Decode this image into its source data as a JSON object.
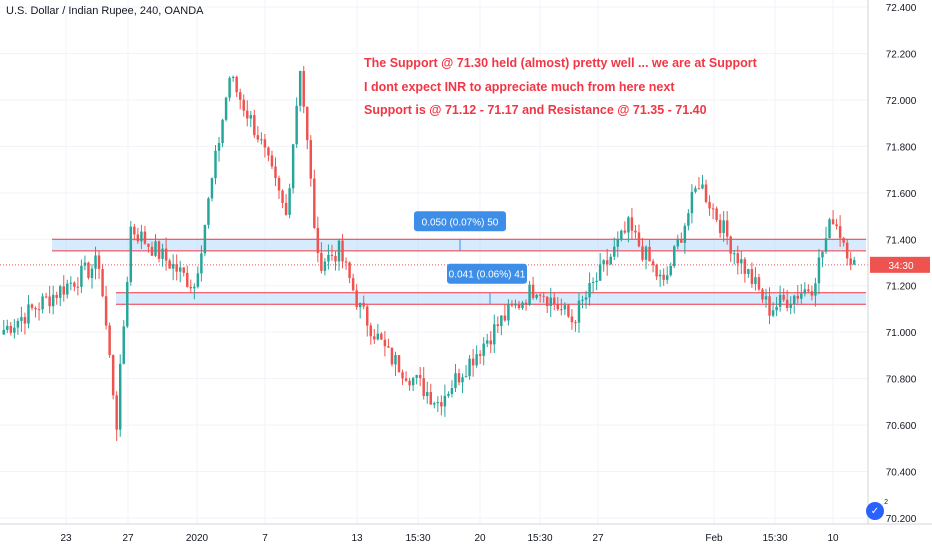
{
  "chart_title": "U.S. Dollar / Indian Rupee, 240, OANDA",
  "annotations": [
    "The Support @ 71.30 held (almost) pretty well ... we are at Support",
    "I dont expect INR to appreciate much from here next",
    "Support is @ 71.12 - 71.17 and Resistance @ 71.35 - 71.40"
  ],
  "colors": {
    "up": "#26a69a",
    "down": "#ef5350",
    "zone_fill": "#bbdefb",
    "zone_line": "#f23645",
    "accent": "#2962ff",
    "label_bg": "#3d8ee8"
  },
  "chart_data": {
    "type": "candlestick",
    "title": "U.S. Dollar / Indian Rupee, 240, OANDA",
    "ylim": [
      70.2,
      72.4
    ],
    "y_ticks": [
      "72.400",
      "72.200",
      "72.000",
      "71.800",
      "71.600",
      "71.400",
      "71.200",
      "71.000",
      "70.800",
      "70.600",
      "70.400",
      "70.200"
    ],
    "x_ticks": [
      "23",
      "27",
      "2020",
      "7",
      "13",
      "15:30",
      "20",
      "15:30",
      "27",
      "Feb",
      "15:30",
      "10"
    ],
    "last_price_label": "34:30",
    "last_price": 71.29,
    "resistance_zone": [
      71.35,
      71.4
    ],
    "support_zone": [
      71.12,
      71.17
    ],
    "measure_labels": [
      "0.050 (0.07%) 50",
      "0.041 (0.06%) 41"
    ],
    "series_segments": [
      {
        "steps": 28,
        "from": 71.0,
        "to": 71.3
      },
      {
        "steps": 5,
        "from": 71.3,
        "to": 70.61
      },
      {
        "steps": 4,
        "from": 70.61,
        "to": 71.45
      },
      {
        "steps": 18,
        "from": 71.45,
        "to": 71.2
      },
      {
        "steps": 10,
        "from": 71.2,
        "to": 72.1
      },
      {
        "steps": 8,
        "from": 72.1,
        "to": 71.85
      },
      {
        "steps": 8,
        "from": 71.85,
        "to": 71.5
      },
      {
        "steps": 4,
        "from": 71.5,
        "to": 72.15
      },
      {
        "steps": 5,
        "from": 72.15,
        "to": 71.3
      },
      {
        "steps": 6,
        "from": 71.3,
        "to": 71.35
      },
      {
        "steps": 6,
        "from": 71.35,
        "to": 71.1
      },
      {
        "steps": 8,
        "from": 71.1,
        "to": 70.9
      },
      {
        "steps": 14,
        "from": 70.9,
        "to": 70.7
      },
      {
        "steps": 18,
        "from": 70.7,
        "to": 71.05
      },
      {
        "steps": 10,
        "from": 71.05,
        "to": 71.2
      },
      {
        "steps": 10,
        "from": 71.2,
        "to": 71.05
      },
      {
        "steps": 16,
        "from": 71.05,
        "to": 71.45
      },
      {
        "steps": 10,
        "from": 71.45,
        "to": 71.2
      },
      {
        "steps": 10,
        "from": 71.2,
        "to": 71.65
      },
      {
        "steps": 10,
        "from": 71.65,
        "to": 71.35
      },
      {
        "steps": 10,
        "from": 71.35,
        "to": 71.1
      },
      {
        "steps": 12,
        "from": 71.1,
        "to": 71.2
      },
      {
        "steps": 6,
        "from": 71.2,
        "to": 71.5
      },
      {
        "steps": 6,
        "from": 71.5,
        "to": 71.29
      }
    ]
  }
}
